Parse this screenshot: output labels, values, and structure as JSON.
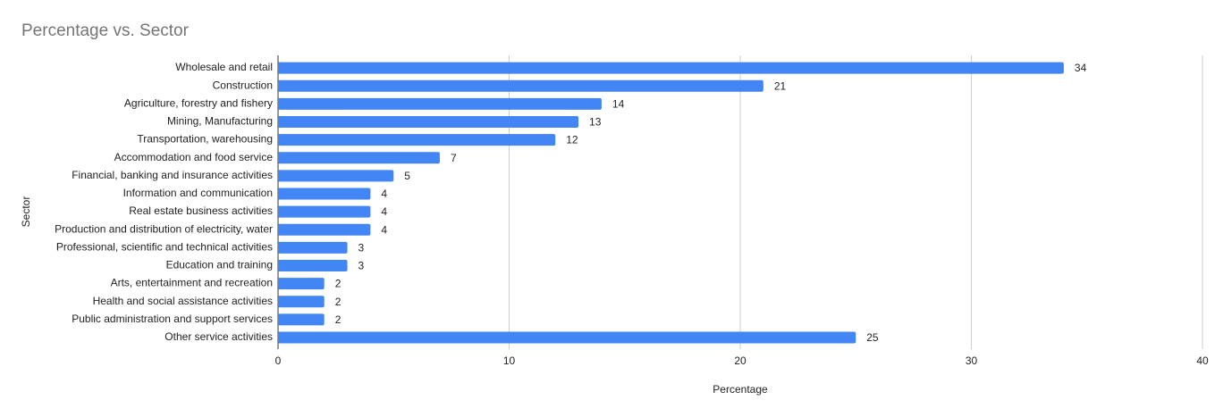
{
  "chart_data": {
    "type": "bar",
    "orientation": "horizontal",
    "title": "Percentage vs. Sector",
    "x_label": "Percentage",
    "y_label": "Sector",
    "categories": [
      "Wholesale and retail",
      "Construction",
      "Agriculture, forestry and fishery",
      "Mining, Manufacturing",
      "Transportation, warehousing",
      "Accommodation and food service",
      "Financial, banking and insurance activities",
      "Information and communication",
      "Real estate business activities",
      "Production and distribution of electricity, water",
      "Professional, scientific and technical activities",
      "Education and training",
      "Arts, entertainment and recreation",
      "Health and social assistance activities",
      "Public administration and support services",
      "Other service activities"
    ],
    "values": [
      34,
      21,
      14,
      13,
      12,
      7,
      5,
      4,
      4,
      4,
      3,
      3,
      2,
      2,
      2,
      25
    ],
    "color": "#4285f4",
    "xlim": [
      0,
      40
    ],
    "xticks": [
      0,
      10,
      20,
      30,
      40
    ],
    "grid": true,
    "data_labels": true
  }
}
